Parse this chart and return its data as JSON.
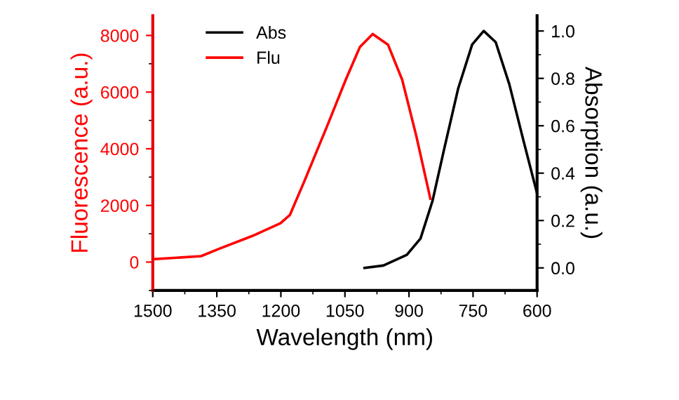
{
  "chart_data": {
    "type": "line",
    "xlabel": "Wavelength (nm)",
    "ylabel": "Fluorescence (a.u.)",
    "y2label": "Absorption (a.u.)",
    "xlim": [
      1500,
      600
    ],
    "xticks": [
      1500,
      1350,
      1200,
      1050,
      900,
      750,
      600
    ],
    "ylim": [
      -1000,
      8700
    ],
    "yticks": [
      0,
      2000,
      4000,
      6000,
      8000
    ],
    "y2lim": [
      -0.095,
      1.065
    ],
    "y2ticks": [
      {
        "value": 0,
        "label": "0.0"
      },
      0.2,
      0.4,
      0.6,
      0.8,
      {
        "value": 1,
        "label": "1.0"
      }
    ],
    "grid": false,
    "legend": "top left",
    "marker": "none",
    "line_style": "solid",
    "series": [
      {
        "name": "Abs",
        "color": "#000000",
        "axis": "y2",
        "x": [
          1004,
          960,
          905,
          873,
          845,
          818,
          785,
          752,
          725,
          697,
          665,
          632,
          601
        ],
        "values": [
          0,
          0.01,
          0.055,
          0.124,
          0.282,
          0.499,
          0.756,
          0.943,
          1.0,
          0.953,
          0.775,
          0.538,
          0.321
        ]
      },
      {
        "name": "Flu",
        "color": "#ff0000",
        "axis": "y",
        "x": [
          1500,
          1387,
          1343,
          1267,
          1201,
          1179,
          1146,
          1092,
          1048,
          1015,
          985,
          949,
          916,
          883,
          850
        ],
        "values": [
          100,
          210,
          480,
          920,
          1370,
          1660,
          2820,
          4790,
          6440,
          7590,
          8050,
          7670,
          6440,
          4460,
          2240
        ]
      }
    ]
  }
}
